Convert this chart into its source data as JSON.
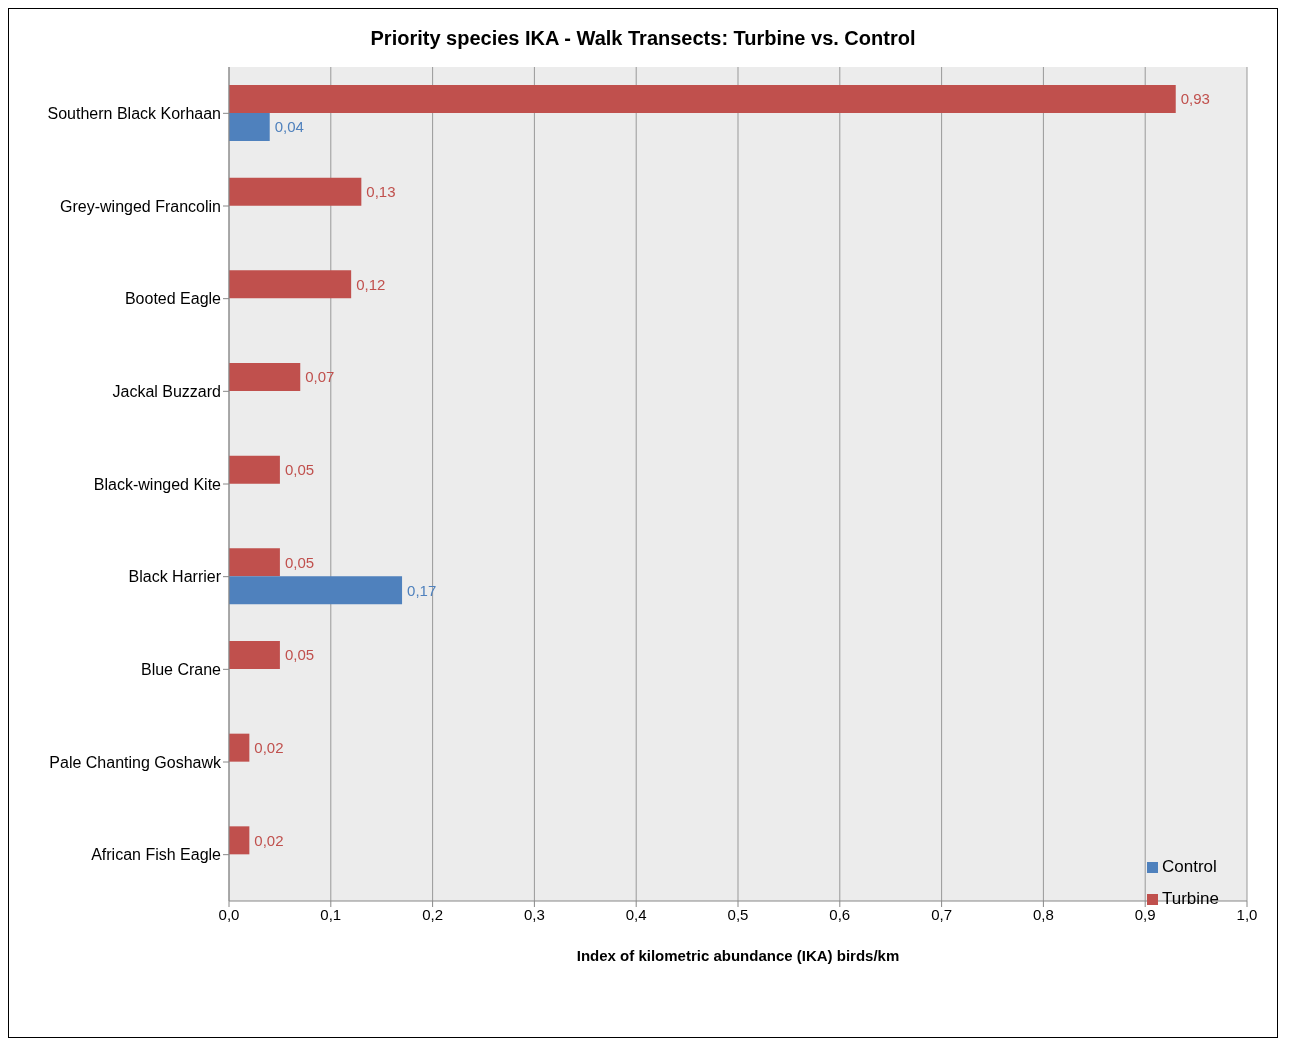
{
  "chart_data": {
    "type": "bar",
    "orientation": "horizontal",
    "title": "Priority species IKA - Walk Transects: Turbine vs. Control",
    "xlabel": "Index of kilometric abundance  (IKA) birds/km",
    "categories": [
      "Southern Black Korhaan",
      "Grey-winged Francolin",
      "Booted Eagle",
      "Jackal Buzzard",
      "Black-winged Kite",
      "Black Harrier",
      "Blue Crane",
      "Pale Chanting Goshawk",
      "African Fish Eagle"
    ],
    "series": [
      {
        "name": "Turbine",
        "color": "#c0504d",
        "values": [
          0.93,
          0.13,
          0.12,
          0.07,
          0.05,
          0.05,
          0.05,
          0.02,
          0.02
        ],
        "value_labels": [
          "0,93",
          "0,13",
          "0,12",
          "0,07",
          "0,05",
          "0,05",
          "0,05",
          "0,02",
          "0,02"
        ]
      },
      {
        "name": "Control",
        "color": "#4f81bd",
        "values": [
          0.04,
          null,
          null,
          null,
          null,
          0.17,
          null,
          null,
          null
        ],
        "value_labels": [
          "0,04",
          null,
          null,
          null,
          null,
          "0,17",
          null,
          null,
          null
        ]
      }
    ],
    "xlim": [
      0,
      1
    ],
    "xticks": [
      {
        "value": 0,
        "label": "0,0"
      },
      {
        "value": 0.1,
        "label": "0,1"
      },
      {
        "value": 0.2,
        "label": "0,2"
      },
      {
        "value": 0.3,
        "label": "0,3"
      },
      {
        "value": 0.4,
        "label": "0,4"
      },
      {
        "value": 0.5,
        "label": "0,5"
      },
      {
        "value": 0.6,
        "label": "0,6"
      },
      {
        "value": 0.7,
        "label": "0,7"
      },
      {
        "value": 0.8,
        "label": "0,8"
      },
      {
        "value": 0.9,
        "label": "0,9"
      },
      {
        "value": 1,
        "label": "1,0"
      }
    ],
    "grid": "x",
    "legend": "bottom right"
  }
}
